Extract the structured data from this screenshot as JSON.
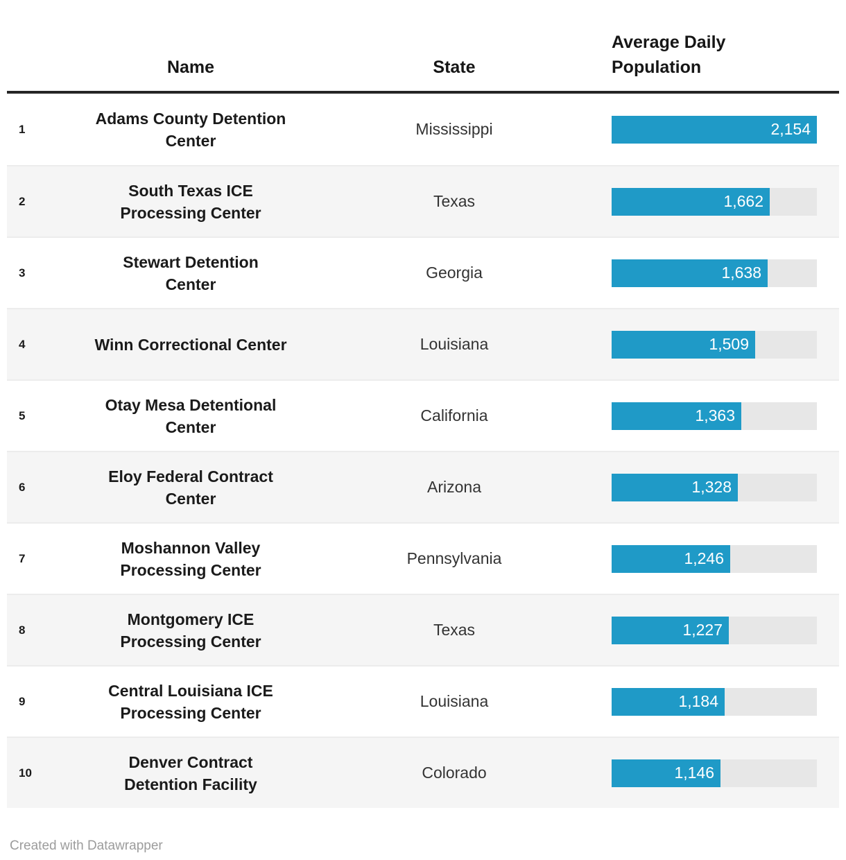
{
  "table": {
    "columns": {
      "rank_label": "",
      "name_label": "Name",
      "state_label": "State",
      "population_label": "Average Daily Population"
    },
    "max_value": 2154,
    "rows": [
      {
        "rank": "1",
        "name": "Adams County Detention Center",
        "name_lines": [
          "Adams County Detention",
          "Center"
        ],
        "state": "Mississippi",
        "population": "2,154",
        "value": 2154
      },
      {
        "rank": "2",
        "name": "South Texas ICE Processing Center",
        "name_lines": [
          "South Texas ICE",
          "Processing Center"
        ],
        "state": "Texas",
        "population": "1,662",
        "value": 1662
      },
      {
        "rank": "3",
        "name": "Stewart Detention Center",
        "name_lines": [
          "Stewart Detention",
          "Center"
        ],
        "state": "Georgia",
        "population": "1,638",
        "value": 1638
      },
      {
        "rank": "4",
        "name": "Winn Correctional Center",
        "name_lines": [
          "Winn Correctional Center"
        ],
        "state": "Louisiana",
        "population": "1,509",
        "value": 1509
      },
      {
        "rank": "5",
        "name": "Otay Mesa Detentional Center",
        "name_lines": [
          "Otay Mesa Detentional",
          "Center"
        ],
        "state": "California",
        "population": "1,363",
        "value": 1363
      },
      {
        "rank": "6",
        "name": "Eloy Federal Contract Center",
        "name_lines": [
          "Eloy Federal Contract",
          "Center"
        ],
        "state": "Arizona",
        "population": "1,328",
        "value": 1328
      },
      {
        "rank": "7",
        "name": "Moshannon Valley Processing Center",
        "name_lines": [
          "Moshannon Valley",
          "Processing Center"
        ],
        "state": "Pennsylvania",
        "population": "1,246",
        "value": 1246
      },
      {
        "rank": "8",
        "name": "Montgomery ICE Processing Center",
        "name_lines": [
          "Montgomery ICE",
          "Processing Center"
        ],
        "state": "Texas",
        "population": "1,227",
        "value": 1227
      },
      {
        "rank": "9",
        "name": "Central Louisiana ICE Processing Center",
        "name_lines": [
          "Central Louisiana ICE",
          "Processing Center"
        ],
        "state": "Louisiana",
        "population": "1,184",
        "value": 1184
      },
      {
        "rank": "10",
        "name": "Denver Contract Detention Facility",
        "name_lines": [
          "Denver Contract",
          "Detention Facility"
        ],
        "state": "Colorado",
        "population": "1,146",
        "value": 1146
      }
    ]
  },
  "chart_data": {
    "type": "bar",
    "title": "",
    "categories": [
      "Adams County Detention Center",
      "South Texas ICE Processing Center",
      "Stewart Detention Center",
      "Winn Correctional Center",
      "Otay Mesa Detentional Center",
      "Eloy Federal Contract Center",
      "Moshannon Valley Processing Center",
      "Montgomery ICE Processing Center",
      "Central Louisiana ICE Processing Center",
      "Denver Contract Detention Facility"
    ],
    "states": [
      "Mississippi",
      "Texas",
      "Georgia",
      "Louisiana",
      "California",
      "Arizona",
      "Pennsylvania",
      "Texas",
      "Louisiana",
      "Colorado"
    ],
    "values": [
      2154,
      1662,
      1638,
      1509,
      1363,
      1328,
      1246,
      1227,
      1184,
      1146
    ],
    "xlabel": "",
    "ylabel": "Average Daily Population",
    "xlim": [
      0,
      2154
    ],
    "orientation": "horizontal",
    "grid": false,
    "legend": false
  },
  "colors": {
    "bar_fill": "#1f9ac7",
    "bar_track": "#e7e7e7",
    "row_alt_bg": "#f5f5f5",
    "header_rule": "#262626",
    "row_divider": "#ececec",
    "name_text": "#1a1a1a",
    "state_text": "#333333",
    "bar_value_text": "#ffffff",
    "footer_text": "#9c9c9c"
  },
  "footer": {
    "credit": "Created with Datawrapper"
  }
}
